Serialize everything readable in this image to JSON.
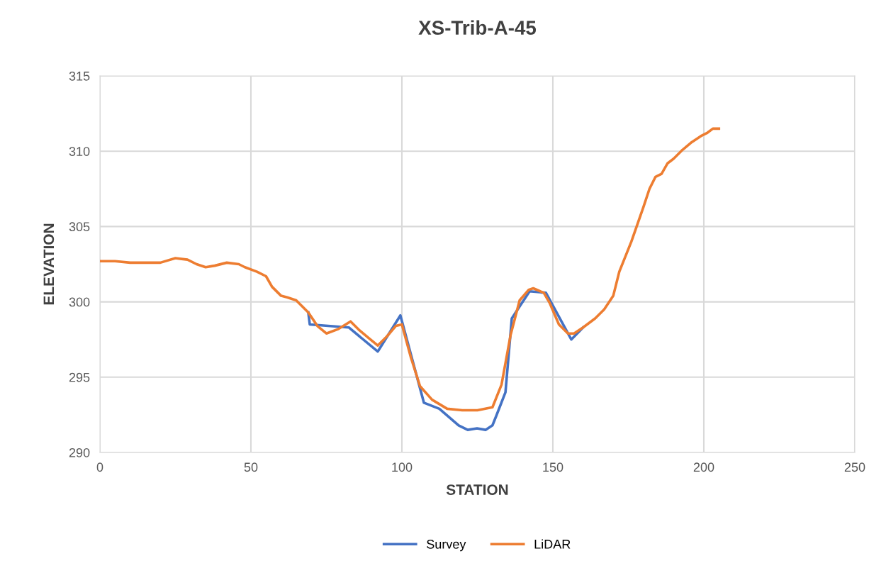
{
  "chart_data": {
    "type": "line",
    "title": "XS-Trib-A-45",
    "xlabel": "STATION",
    "ylabel": "ELEVATION",
    "xlim": [
      0,
      250
    ],
    "xticks": [
      0,
      50,
      100,
      150,
      200,
      250
    ],
    "ylim": [
      290,
      315
    ],
    "yticks": [
      290,
      295,
      300,
      305,
      310,
      315
    ],
    "grid": true,
    "legend": "bottom",
    "marker": "none",
    "line_style": "solid",
    "series": [
      {
        "name": "Survey",
        "color": "#4472c4",
        "x": [
          69,
          69.5,
          82.4,
          92.0,
          99.5,
          107.3,
          112.4,
          118.8,
          121.8,
          124.9,
          127.7,
          130.0,
          131.2,
          134.3,
          136.4,
          139.0,
          142.3,
          147.7,
          156.1,
          160
        ],
        "values": [
          299.3,
          298.5,
          298.3,
          296.7,
          299.1,
          293.3,
          292.9,
          291.8,
          291.5,
          291.6,
          291.5,
          291.8,
          292.4,
          294.0,
          298.9,
          299.7,
          300.7,
          300.6,
          297.5,
          298.3
        ]
      },
      {
        "name": "LiDAR",
        "color": "#ed7d31",
        "x": [
          0,
          5,
          10,
          15,
          20,
          25,
          29,
          32,
          35,
          38,
          42,
          46,
          48,
          52,
          55,
          57,
          60,
          62,
          65,
          69,
          72,
          75,
          79,
          83,
          86,
          89,
          92,
          95,
          98,
          100,
          103,
          106,
          110,
          115,
          120,
          125,
          130,
          133,
          136,
          139,
          142,
          143.5,
          147,
          149,
          152,
          155,
          157,
          160,
          164,
          167,
          170,
          172,
          176,
          180,
          182,
          184,
          186,
          188,
          190,
          193,
          196,
          199,
          201,
          203,
          205
        ],
        "values": [
          302.7,
          302.7,
          302.6,
          302.6,
          302.6,
          302.9,
          302.8,
          302.5,
          302.3,
          302.4,
          302.6,
          302.5,
          302.3,
          302.0,
          301.7,
          301.0,
          300.4,
          300.3,
          300.1,
          299.3,
          298.4,
          297.9,
          298.2,
          298.7,
          298.1,
          297.6,
          297.1,
          297.7,
          298.4,
          298.5,
          296.3,
          294.4,
          293.5,
          292.9,
          292.8,
          292.8,
          293.0,
          294.5,
          297.8,
          300.1,
          300.8,
          300.9,
          300.6,
          299.9,
          298.5,
          297.9,
          297.9,
          298.3,
          298.9,
          299.5,
          300.4,
          302.0,
          304.0,
          306.3,
          307.5,
          308.3,
          308.5,
          309.2,
          309.5,
          310.1,
          310.6,
          311.0,
          311.2,
          311.5,
          311.5
        ]
      }
    ]
  }
}
